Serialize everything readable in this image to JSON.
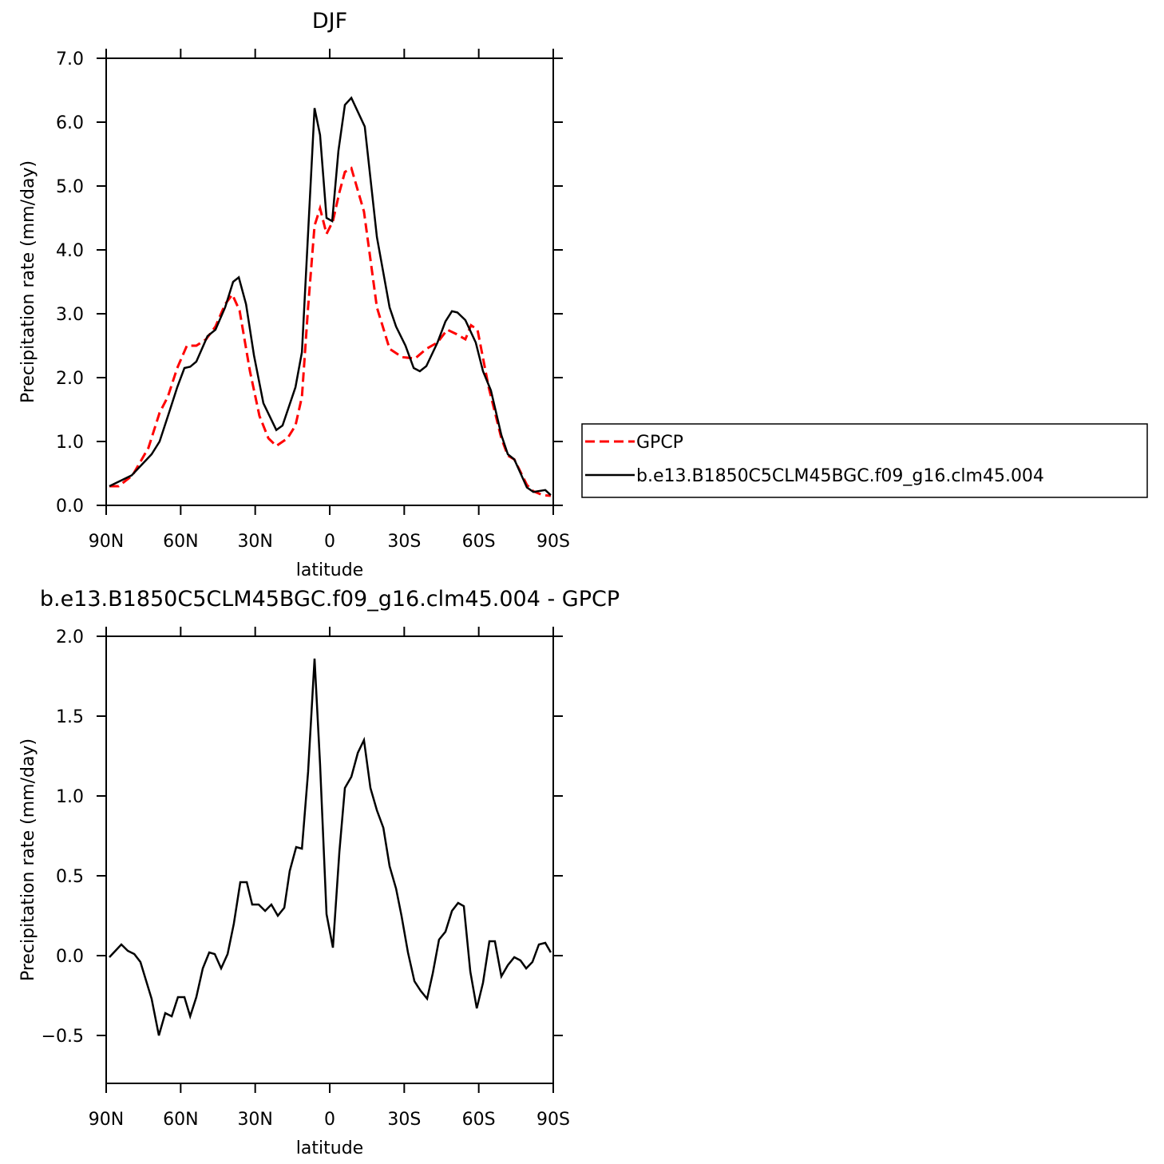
{
  "chart_data": [
    {
      "type": "line",
      "title": "DJF",
      "xlabel": "latitude",
      "ylabel": "Precipitation rate (mm/day)",
      "xlim": [
        90,
        -90
      ],
      "xticks": [
        {
          "value": 90,
          "label": "90N"
        },
        {
          "value": 60,
          "label": "60N"
        },
        {
          "value": 30,
          "label": "30N"
        },
        0,
        {
          "value": -30,
          "label": "30S"
        },
        {
          "value": -60,
          "label": "60S"
        },
        {
          "value": -90,
          "label": "90S"
        }
      ],
      "ylim": [
        0,
        7
      ],
      "yticks": [
        {
          "value": 0,
          "label": "0.0"
        },
        {
          "value": 1,
          "label": "1.0"
        },
        {
          "value": 2,
          "label": "2.0"
        },
        {
          "value": 3,
          "label": "3.0"
        },
        {
          "value": 4,
          "label": "4.0"
        },
        {
          "value": 5,
          "label": "5.0"
        },
        {
          "value": 6,
          "label": "6.0"
        },
        {
          "value": 7,
          "label": "7.0"
        }
      ],
      "legend": "right",
      "series": [
        {
          "name": "GPCP",
          "color": "#ff0000",
          "style": "dashed",
          "x": [
            88.7,
            85,
            79.4,
            73,
            68.5,
            65.2,
            61.4,
            57.5,
            53.7,
            49.8,
            46,
            42.1,
            39.2,
            36.3,
            32.1,
            28.3,
            24.7,
            21.5,
            17,
            13.8,
            11.2,
            8.7,
            6.1,
            3.9,
            1.3,
            -1.3,
            -3.9,
            -6.1,
            -8.7,
            -13.8,
            -19,
            -24.1,
            -29.2,
            -34.4,
            -38.9,
            -43.4,
            -47.3,
            -51.1,
            -54.6,
            -56.9,
            -59.5,
            -64,
            -69.1,
            -71.7,
            -74.3,
            -79.4,
            -82,
            -85.8,
            -89
          ],
          "values": [
            0.3,
            0.3,
            0.47,
            0.9,
            1.45,
            1.7,
            2.15,
            2.5,
            2.5,
            2.6,
            2.8,
            3.15,
            3.3,
            3.05,
            2.1,
            1.4,
            1.05,
            0.93,
            1.05,
            1.25,
            1.7,
            3.1,
            4.38,
            4.65,
            4.25,
            4.45,
            4.9,
            5.22,
            5.28,
            4.6,
            3.1,
            2.45,
            2.32,
            2.3,
            2.45,
            2.55,
            2.75,
            2.68,
            2.6,
            2.82,
            2.75,
            1.85,
            1.05,
            0.78,
            0.72,
            0.32,
            0.22,
            0.16,
            0.15
          ]
        },
        {
          "name": "b.e13.B1850C5CLM45BGC.f09_g16.clm45.004",
          "color": "#000000",
          "style": "solid",
          "x": [
            88.7,
            79.7,
            71.7,
            68.5,
            64.3,
            61.4,
            58.5,
            56.2,
            53.7,
            49.2,
            46,
            42.1,
            38.9,
            36.6,
            33.7,
            30.5,
            26.7,
            21.5,
            19,
            13.8,
            11.2,
            6.1,
            3.9,
            1.3,
            -1,
            -3.5,
            -6.1,
            -8.7,
            -14.1,
            -19,
            -24.1,
            -26.7,
            -30.5,
            -33.8,
            -36.3,
            -38.9,
            -43.4,
            -46.6,
            -49.2,
            -51.4,
            -54.6,
            -58.8,
            -61.7,
            -64.9,
            -69.1,
            -71.7,
            -74.3,
            -79.4,
            -82,
            -86.8,
            -89
          ],
          "values": [
            0.3,
            0.47,
            0.8,
            1.0,
            1.5,
            1.85,
            2.15,
            2.17,
            2.25,
            2.65,
            2.75,
            3.1,
            3.5,
            3.57,
            3.15,
            2.35,
            1.6,
            1.18,
            1.25,
            1.85,
            2.4,
            6.22,
            5.8,
            4.5,
            4.45,
            5.55,
            6.27,
            6.38,
            5.93,
            4.2,
            3.1,
            2.8,
            2.5,
            2.15,
            2.1,
            2.18,
            2.55,
            2.88,
            3.04,
            3.02,
            2.9,
            2.55,
            2.1,
            1.8,
            1.1,
            0.8,
            0.72,
            0.28,
            0.21,
            0.24,
            0.16
          ]
        }
      ]
    },
    {
      "type": "line",
      "title": "b.e13.B1850C5CLM45BGC.f09_g16.clm45.004 - GPCP",
      "xlabel": "latitude",
      "ylabel": "Precipitation rate (mm/day)",
      "xlim": [
        90,
        -90
      ],
      "xticks": [
        {
          "value": 90,
          "label": "90N"
        },
        {
          "value": 60,
          "label": "60N"
        },
        {
          "value": 30,
          "label": "30N"
        },
        0,
        {
          "value": -30,
          "label": "30S"
        },
        {
          "value": -60,
          "label": "60S"
        },
        {
          "value": -90,
          "label": "90S"
        }
      ],
      "ylim": [
        -0.8,
        2
      ],
      "yticks": [
        {
          "value": -0.5,
          "label": "−0.5"
        },
        {
          "value": 0,
          "label": "0.0"
        },
        0.5,
        {
          "value": 1,
          "label": "1.0"
        },
        1.5,
        {
          "value": 2,
          "label": "2.0"
        }
      ],
      "series": [
        {
          "color": "#000000",
          "style": "solid",
          "x": [
            88.7,
            83.9,
            81.3,
            78.7,
            76.2,
            71.7,
            68.8,
            66.2,
            63.6,
            61.1,
            58.5,
            56.2,
            53.7,
            51.1,
            48.5,
            46.3,
            43.7,
            41.1,
            38.6,
            36,
            33.4,
            31.2,
            28.6,
            26,
            23.5,
            20.9,
            18.3,
            16.1,
            13.5,
            11.2,
            8.7,
            6.1,
            3.9,
            1.3,
            -1.3,
            -3.9,
            -6.1,
            -8.7,
            -11.3,
            -13.8,
            -16.4,
            -19,
            -21.6,
            -24.1,
            -26.7,
            -28.9,
            -31.5,
            -34.1,
            -36.6,
            -39.2,
            -41.5,
            -44,
            -46.6,
            -49.2,
            -51.7,
            -54,
            -56.6,
            -59.2,
            -61.7,
            -64.3,
            -66.5,
            -69.1,
            -71.7,
            -74.3,
            -76.8,
            -79.1,
            -81.6,
            -84.2,
            -86.8,
            -89
          ],
          "values": [
            -0.01,
            0.07,
            0.03,
            0.01,
            -0.04,
            -0.27,
            -0.5,
            -0.36,
            -0.38,
            -0.26,
            -0.26,
            -0.38,
            -0.26,
            -0.08,
            0.02,
            0.01,
            -0.08,
            0.01,
            0.2,
            0.46,
            0.46,
            0.32,
            0.32,
            0.28,
            0.32,
            0.25,
            0.3,
            0.53,
            0.68,
            0.67,
            1.15,
            1.86,
            1.2,
            0.26,
            0.05,
            0.65,
            1.05,
            1.12,
            1.27,
            1.35,
            1.05,
            0.91,
            0.8,
            0.56,
            0.42,
            0.25,
            0.02,
            -0.16,
            -0.22,
            -0.27,
            -0.11,
            0.1,
            0.15,
            0.28,
            0.33,
            0.31,
            -0.1,
            -0.33,
            -0.17,
            0.09,
            0.09,
            -0.13,
            -0.06,
            -0.01,
            -0.03,
            -0.08,
            -0.04,
            0.07,
            0.08,
            0.02
          ]
        }
      ]
    }
  ]
}
